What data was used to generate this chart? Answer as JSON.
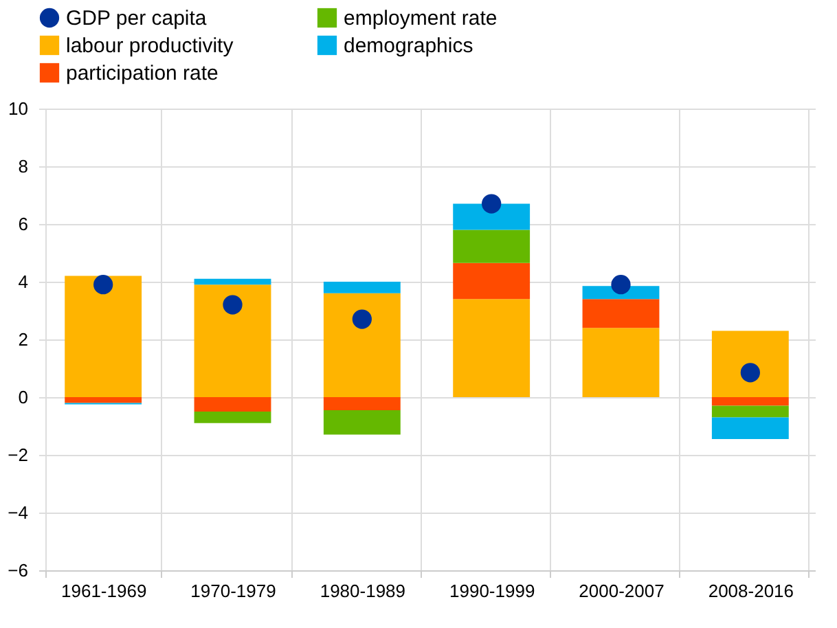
{
  "chart_data": {
    "type": "bar",
    "stacked": true,
    "categories": [
      "1961-1969",
      "1970-1979",
      "1980-1989",
      "1990-1999",
      "2000-2007",
      "2008-2016"
    ],
    "series": [
      {
        "name": "labour productivity",
        "color": "#ffb400",
        "values": [
          4.2,
          3.9,
          3.6,
          3.4,
          2.4,
          2.3
        ]
      },
      {
        "name": "participation rate",
        "color": "#ff4b00",
        "values": [
          -0.2,
          -0.5,
          -0.45,
          1.25,
          1.0,
          -0.3
        ]
      },
      {
        "name": "employment rate",
        "color": "#65b800",
        "values": [
          null,
          -0.4,
          -0.85,
          1.15,
          null,
          -0.4
        ]
      },
      {
        "name": "demographics",
        "color": "#00b1ea",
        "values": [
          -0.05,
          0.2,
          0.4,
          0.9,
          0.45,
          -0.75
        ]
      },
      {
        "name": "GDP per capita",
        "color": "#003299",
        "type": "scatter",
        "values": [
          3.9,
          3.2,
          2.7,
          6.7,
          3.9,
          0.85
        ]
      }
    ],
    "ylim": [
      -6,
      10
    ],
    "yticks": [
      -6,
      -4,
      -2,
      0,
      2,
      4,
      6,
      8,
      10
    ],
    "grid": true,
    "legend": "top left",
    "marker": "circle"
  }
}
